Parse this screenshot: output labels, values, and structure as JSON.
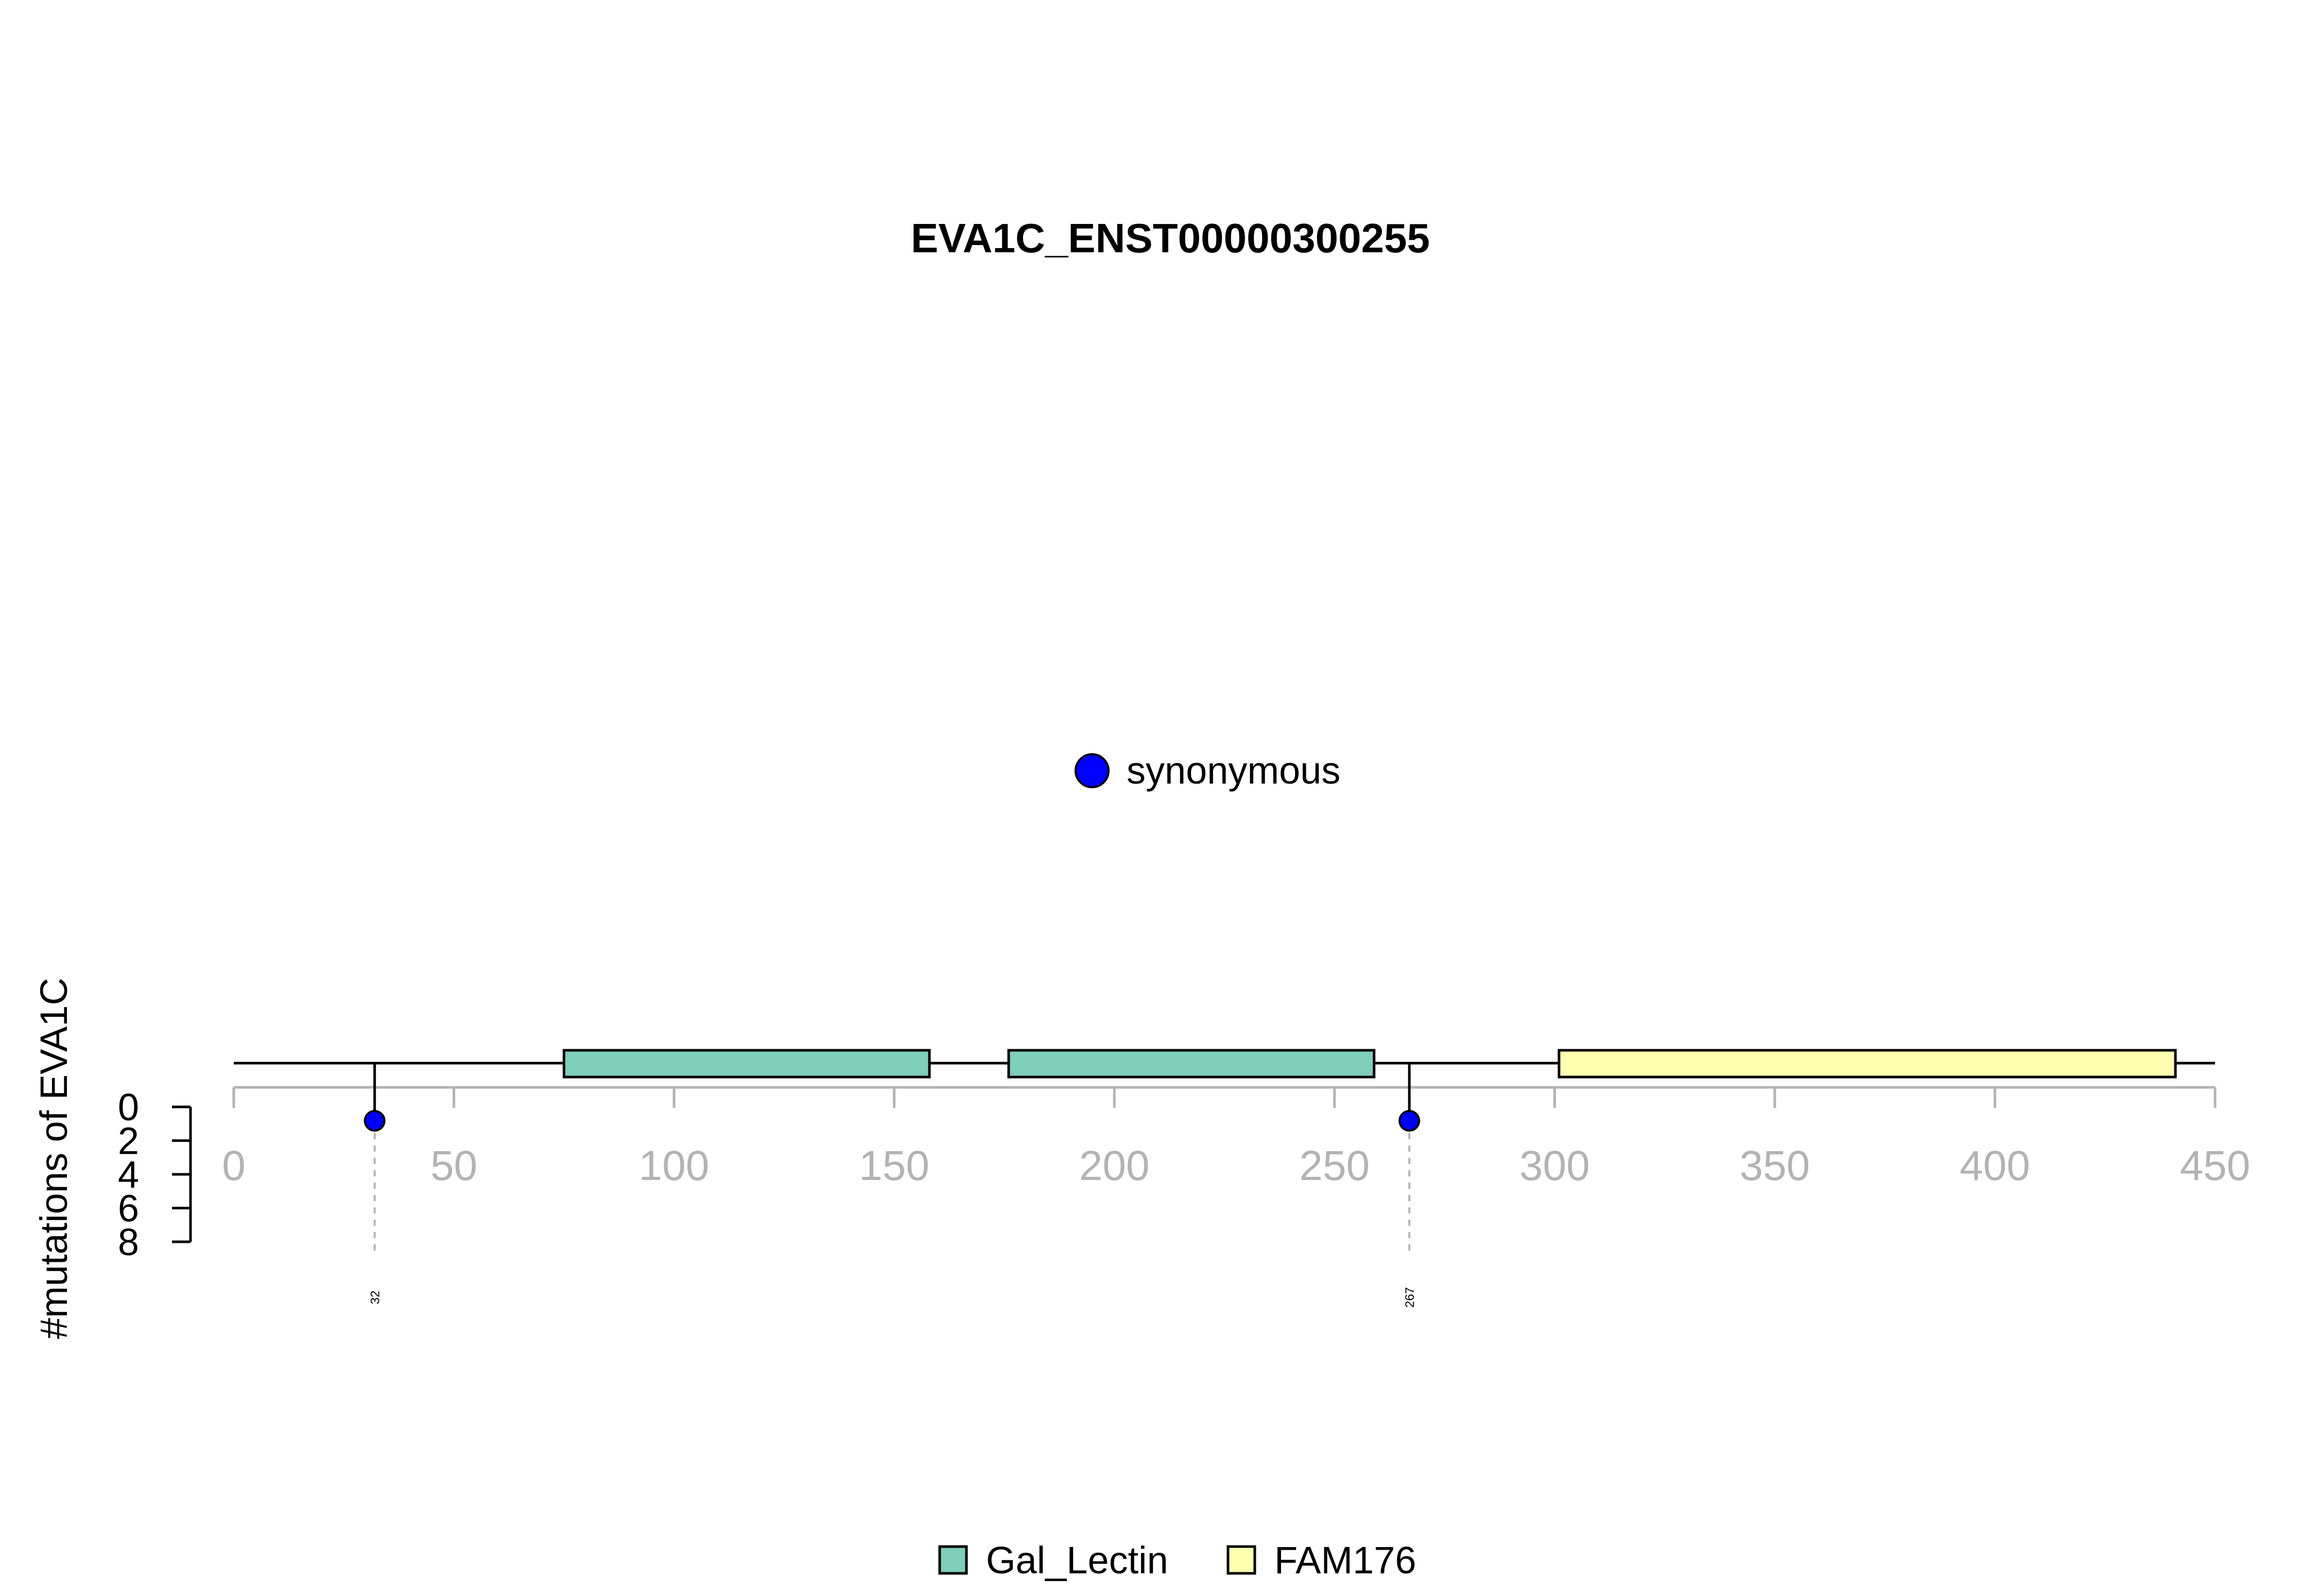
{
  "chart_data": {
    "type": "lollipop",
    "title": "EVA1C_ENST00000300255",
    "ylabel": "#mutations of EVA1C",
    "protein_length": 450,
    "x_ticks": [
      0,
      50,
      100,
      150,
      200,
      250,
      300,
      350,
      400,
      450
    ],
    "xlim": [
      0,
      450
    ],
    "y_ticks": [
      0,
      2,
      4,
      6,
      8
    ],
    "ylim": [
      0,
      8
    ],
    "domains": [
      {
        "name": "Gal_Lectin",
        "start": 75,
        "end": 158,
        "color": "#7fcdbb"
      },
      {
        "name": "Gal_Lectin",
        "start": 176,
        "end": 259,
        "color": "#7fcdbb"
      },
      {
        "name": "FAM176",
        "start": 301,
        "end": 441,
        "color": "#ffffb2"
      }
    ],
    "mutations": [
      {
        "position": 32,
        "count": 1,
        "label": "32",
        "type": "synonymous"
      },
      {
        "position": 267,
        "count": 1,
        "label": "267",
        "type": "synonymous"
      }
    ],
    "mutation_legend": [
      {
        "label": "synonymous",
        "color": "#0000ff"
      }
    ],
    "domain_legend": [
      {
        "label": "Gal_Lectin",
        "color": "#7fcdbb"
      },
      {
        "label": "FAM176",
        "color": "#ffffb2"
      }
    ]
  }
}
